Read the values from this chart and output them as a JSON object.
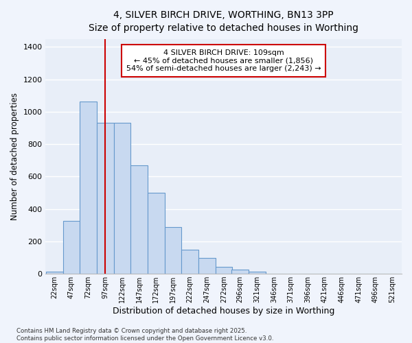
{
  "title": "4, SILVER BIRCH DRIVE, WORTHING, BN13 3PP",
  "subtitle": "Size of property relative to detached houses in Worthing",
  "xlabel": "Distribution of detached houses by size in Worthing",
  "ylabel": "Number of detached properties",
  "bin_labels": [
    "22sqm",
    "47sqm",
    "72sqm",
    "97sqm",
    "122sqm",
    "147sqm",
    "172sqm",
    "197sqm",
    "222sqm",
    "247sqm",
    "272sqm",
    "296sqm",
    "321sqm",
    "346sqm",
    "371sqm",
    "396sqm",
    "421sqm",
    "446sqm",
    "471sqm",
    "496sqm",
    "521sqm"
  ],
  "bar_heights": [
    15,
    325,
    1065,
    930,
    930,
    670,
    500,
    290,
    150,
    100,
    45,
    25,
    15,
    0,
    0,
    0,
    0,
    0,
    0,
    0,
    0
  ],
  "bar_color": "#c8d9f0",
  "bar_edge_color": "#6699cc",
  "background_color": "#e8eef8",
  "grid_color": "#ffffff",
  "vline_x": 109,
  "vline_color": "#cc0000",
  "annotation_text": "4 SILVER BIRCH DRIVE: 109sqm\n← 45% of detached houses are smaller (1,856)\n54% of semi-detached houses are larger (2,243) →",
  "annotation_box_color": "#ffffff",
  "annotation_edge_color": "#cc0000",
  "ylim": [
    0,
    1450
  ],
  "yticks": [
    0,
    200,
    400,
    600,
    800,
    1000,
    1200,
    1400
  ],
  "footer_text": "Contains HM Land Registry data © Crown copyright and database right 2025.\nContains public sector information licensed under the Open Government Licence v3.0.",
  "bin_width": 25,
  "bin_starts": [
    22,
    47,
    72,
    97,
    122,
    147,
    172,
    197,
    222,
    247,
    272,
    296,
    321,
    346,
    371,
    396,
    421,
    446,
    471,
    496,
    521
  ],
  "fig_bg": "#f0f4fc"
}
